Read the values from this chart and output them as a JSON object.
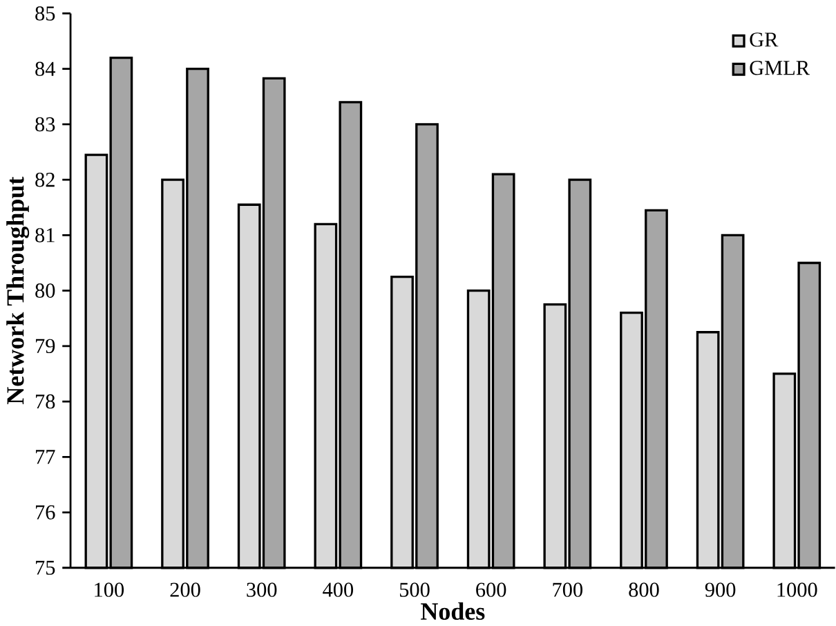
{
  "chart_data": {
    "type": "bar",
    "xlabel": "Nodes",
    "ylabel": "Network Throughput",
    "categories": [
      "100",
      "200",
      "300",
      "400",
      "500",
      "600",
      "700",
      "800",
      "900",
      "1000"
    ],
    "series": [
      {
        "name": "GR",
        "color": "#d9d9d9",
        "values": [
          82.45,
          82.0,
          81.55,
          81.2,
          80.25,
          80.0,
          79.75,
          79.6,
          79.25,
          78.5
        ]
      },
      {
        "name": "GMLR",
        "color": "#a6a6a6",
        "values": [
          84.2,
          84.0,
          83.83,
          83.4,
          83.0,
          82.1,
          82.0,
          81.45,
          81.0,
          80.5
        ]
      }
    ],
    "ylim": [
      75,
      85
    ],
    "yticks": [
      75,
      76,
      77,
      78,
      79,
      80,
      81,
      82,
      83,
      84,
      85
    ],
    "legend": "top right",
    "grid": false
  }
}
